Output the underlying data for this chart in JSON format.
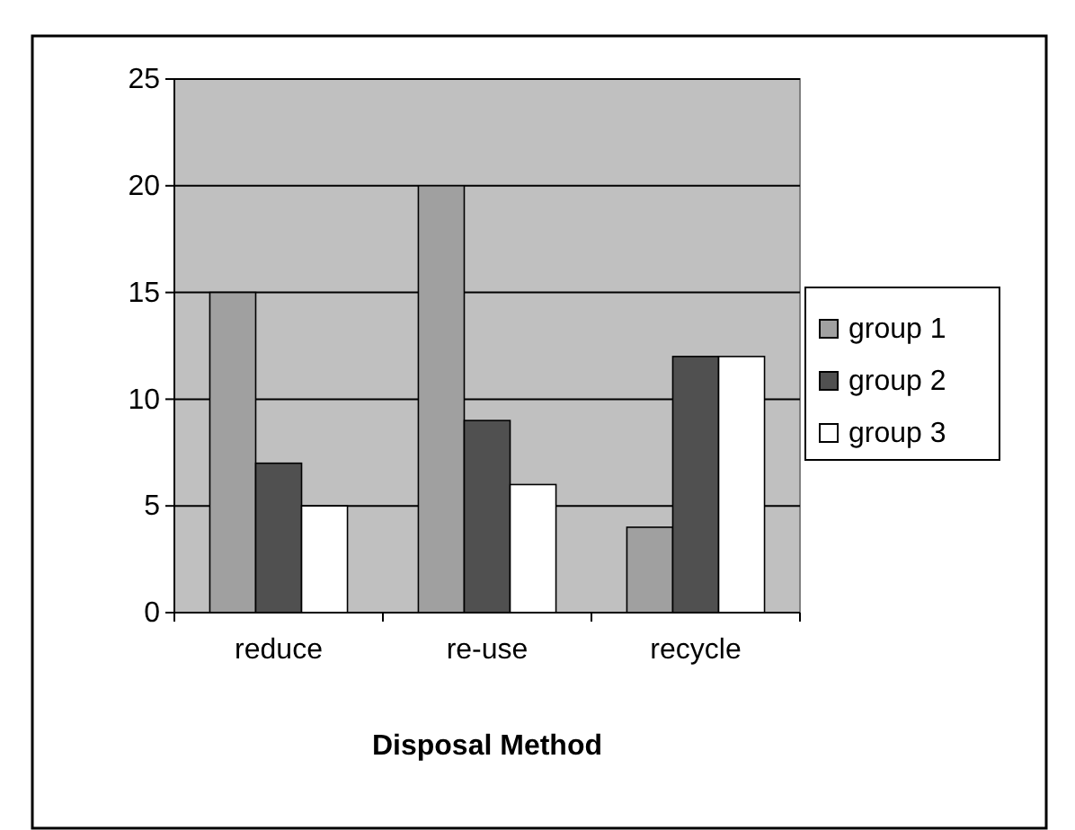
{
  "chart_data": {
    "type": "bar",
    "xlabel": "Disposal Method",
    "categories": [
      "reduce",
      "re-use",
      "recycle"
    ],
    "series": [
      {
        "name": "group 1",
        "color": "#a0a0a0",
        "values": [
          15,
          20,
          4
        ]
      },
      {
        "name": "group 2",
        "color": "#505050",
        "values": [
          7,
          9,
          12
        ]
      },
      {
        "name": "group 3",
        "color": "#ffffff",
        "values": [
          5,
          6,
          12
        ]
      }
    ],
    "ylim": [
      0,
      25
    ],
    "yticks": [
      0,
      5,
      10,
      15,
      20,
      25
    ],
    "grid": "y",
    "legend": "right"
  }
}
